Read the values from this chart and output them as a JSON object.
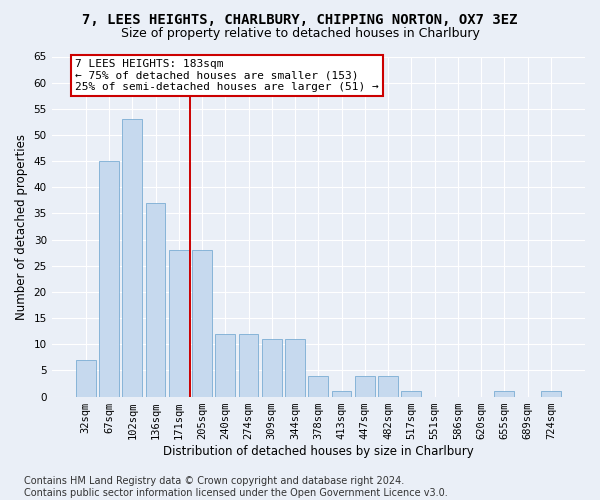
{
  "title": "7, LEES HEIGHTS, CHARLBURY, CHIPPING NORTON, OX7 3EZ",
  "subtitle": "Size of property relative to detached houses in Charlbury",
  "xlabel": "Distribution of detached houses by size in Charlbury",
  "ylabel": "Number of detached properties",
  "categories": [
    "32sqm",
    "67sqm",
    "102sqm",
    "136sqm",
    "171sqm",
    "205sqm",
    "240sqm",
    "274sqm",
    "309sqm",
    "344sqm",
    "378sqm",
    "413sqm",
    "447sqm",
    "482sqm",
    "517sqm",
    "551sqm",
    "586sqm",
    "620sqm",
    "655sqm",
    "689sqm",
    "724sqm"
  ],
  "values": [
    7,
    45,
    53,
    37,
    28,
    28,
    12,
    12,
    11,
    11,
    4,
    1,
    4,
    4,
    1,
    0,
    0,
    0,
    1,
    0,
    1
  ],
  "bar_color": "#c6d9ee",
  "bar_edge_color": "#7aadd4",
  "bar_width": 0.85,
  "ylim": [
    0,
    65
  ],
  "yticks": [
    0,
    5,
    10,
    15,
    20,
    25,
    30,
    35,
    40,
    45,
    50,
    55,
    60,
    65
  ],
  "property_line_x": 4.5,
  "property_line_color": "#cc0000",
  "annotation_line1": "7 LEES HEIGHTS: 183sqm",
  "annotation_line2": "← 75% of detached houses are smaller (153)",
  "annotation_line3": "25% of semi-detached houses are larger (51) →",
  "annotation_box_color": "#cc0000",
  "footer_line1": "Contains HM Land Registry data © Crown copyright and database right 2024.",
  "footer_line2": "Contains public sector information licensed under the Open Government Licence v3.0.",
  "bg_color": "#eaeff7",
  "plot_bg_color": "#eaeff7",
  "grid_color": "#ffffff",
  "title_fontsize": 10,
  "subtitle_fontsize": 9,
  "axis_label_fontsize": 8.5,
  "tick_fontsize": 7.5,
  "annotation_fontsize": 8,
  "footer_fontsize": 7
}
